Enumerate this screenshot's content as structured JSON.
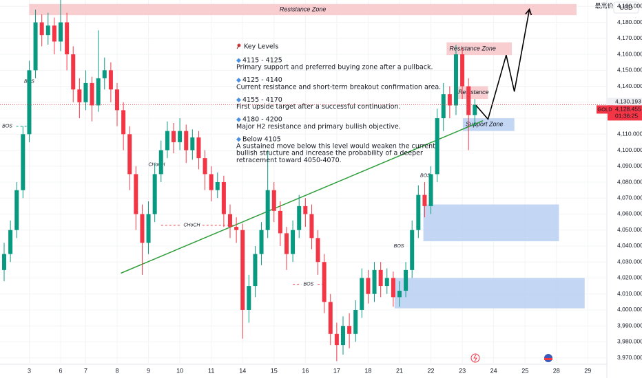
{
  "chart_data": {
    "type": "candlestick",
    "currency": "USD",
    "high_label": "最高价",
    "symbol": "GOLD",
    "countdown": "01:36:25",
    "up_color": "#089981",
    "down_color": "#f23645",
    "open": [
      4025,
      4035,
      4050,
      4075,
      4110,
      4150,
      4180,
      4172,
      4178,
      4168,
      4180,
      4160,
      4138,
      4130,
      4142,
      4128,
      4145,
      4150,
      4138,
      4125,
      4110,
      4085,
      4060,
      4042,
      4060,
      4085,
      4100,
      4112,
      4105,
      4112,
      4100,
      4108,
      4095,
      4085,
      4075,
      4080,
      4060,
      4052,
      4050,
      4000,
      4015,
      4035,
      4050,
      4075,
      4062,
      4048,
      4035,
      4050,
      4065,
      4060,
      4045,
      4030,
      4005,
      3985,
      3978,
      3990,
      3985,
      4000,
      4020,
      4010,
      4025,
      4015,
      4020,
      4008,
      4012,
      4025,
      4050,
      4072,
      4065,
      4085,
      4120,
      4135,
      4128,
      4160,
      4140,
      4122
    ],
    "high": [
      4042,
      4056,
      4080,
      4115,
      4156,
      4188,
      4185,
      4186,
      4183,
      4196,
      4186,
      4165,
      4145,
      4150,
      4146,
      4175,
      4158,
      4155,
      4142,
      4130,
      4115,
      4090,
      4066,
      4068,
      4092,
      4106,
      4118,
      4117,
      4120,
      4116,
      4113,
      4112,
      4100,
      4090,
      4086,
      4084,
      4066,
      4058,
      4054,
      4022,
      4040,
      4055,
      4100,
      4080,
      4068,
      4052,
      4056,
      4072,
      4070,
      4066,
      4050,
      4035,
      4010,
      3992,
      3996,
      3998,
      4006,
      4026,
      4025,
      4030,
      4030,
      4026,
      4024,
      4018,
      4030,
      4056,
      4078,
      4080,
      4090,
      4126,
      4142,
      4140,
      4166,
      4164,
      4145,
      4132
    ],
    "low": [
      4018,
      4030,
      4045,
      4070,
      4105,
      4145,
      4165,
      4166,
      4160,
      4162,
      4150,
      4130,
      4120,
      4125,
      4118,
      4124,
      4138,
      4130,
      4115,
      4100,
      4075,
      4050,
      4022,
      4035,
      4055,
      4080,
      4095,
      4098,
      4100,
      4092,
      4094,
      4088,
      4075,
      4068,
      4070,
      4052,
      4045,
      4042,
      3982,
      3992,
      4008,
      4028,
      4045,
      4055,
      4040,
      4025,
      4030,
      4045,
      4052,
      4038,
      4022,
      3998,
      3978,
      3968,
      3972,
      3976,
      3980,
      3995,
      4004,
      4005,
      4008,
      4010,
      4002,
      4002,
      4008,
      4020,
      4045,
      4058,
      4060,
      4080,
      4112,
      4120,
      4122,
      4132,
      4100,
      4115
    ],
    "close": [
      4035,
      4050,
      4075,
      4110,
      4150,
      4180,
      4172,
      4178,
      4168,
      4180,
      4160,
      4138,
      4130,
      4142,
      4128,
      4145,
      4150,
      4138,
      4125,
      4110,
      4085,
      4060,
      4042,
      4060,
      4085,
      4100,
      4112,
      4105,
      4112,
      4100,
      4108,
      4095,
      4085,
      4075,
      4080,
      4060,
      4052,
      4050,
      4000,
      4015,
      4035,
      4050,
      4075,
      4062,
      4048,
      4035,
      4050,
      4065,
      4060,
      4045,
      4030,
      4005,
      3985,
      3978,
      3990,
      3985,
      4000,
      4020,
      4010,
      4025,
      4015,
      4020,
      4008,
      4012,
      4025,
      4050,
      4072,
      4065,
      4085,
      4120,
      4135,
      4128,
      4160,
      4140,
      4122,
      4128.455
    ],
    "ylim": [
      3966,
      4194
    ],
    "yticks": [
      {
        "value": 3970,
        "label": "3,970.000"
      },
      {
        "value": 3980,
        "label": "3,980.000"
      },
      {
        "value": 3990,
        "label": "3,990.000"
      },
      {
        "value": 4000,
        "label": "4,000.000"
      },
      {
        "value": 4010,
        "label": "4,010.000"
      },
      {
        "value": 4020,
        "label": "4,020.000"
      },
      {
        "value": 4030,
        "label": "4,030.000"
      },
      {
        "value": 4040,
        "label": "4,040.000"
      },
      {
        "value": 4050,
        "label": "4,050.000"
      },
      {
        "value": 4060,
        "label": "4,060.000"
      },
      {
        "value": 4070,
        "label": "4,070.000"
      },
      {
        "value": 4080,
        "label": "4,080.000"
      },
      {
        "value": 4090,
        "label": "4,090.000"
      },
      {
        "value": 4100,
        "label": "4,100.000"
      },
      {
        "value": 4110,
        "label": "4,110.000"
      },
      {
        "value": 4120,
        "label": "4,120.000"
      },
      {
        "value": 4130,
        "label": "4,130.000"
      },
      {
        "value": 4140,
        "label": "4,140.000"
      },
      {
        "value": 4150,
        "label": "4,150.000"
      },
      {
        "value": 4160,
        "label": "4,160.000"
      },
      {
        "value": 4170,
        "label": "4,170.000"
      },
      {
        "value": 4180,
        "label": "4,180.000"
      },
      {
        "value": 4190,
        "label": "4,190.000"
      }
    ],
    "xlim": [
      -0.66,
      96.04
    ],
    "xticks": [
      {
        "value": 4,
        "label": "3"
      },
      {
        "value": 9,
        "label": "6"
      },
      {
        "value": 13,
        "label": "7"
      },
      {
        "value": 18,
        "label": "8"
      },
      {
        "value": 23,
        "label": "9"
      },
      {
        "value": 28,
        "label": "10"
      },
      {
        "value": 33,
        "label": "11"
      },
      {
        "value": 38,
        "label": "14"
      },
      {
        "value": 43,
        "label": "15"
      },
      {
        "value": 48,
        "label": "16"
      },
      {
        "value": 53,
        "label": "17"
      },
      {
        "value": 58,
        "label": "18"
      },
      {
        "value": 63,
        "label": "21"
      },
      {
        "value": 68,
        "label": "22"
      },
      {
        "value": 73,
        "label": "23"
      },
      {
        "value": 78,
        "label": "24"
      },
      {
        "value": 83,
        "label": "25"
      },
      {
        "value": 88,
        "label": "28"
      },
      {
        "value": 93,
        "label": "29"
      }
    ],
    "price_marks": [
      {
        "value": 4130.193,
        "label": "4,130.193"
      },
      {
        "value": 4128.455,
        "label": "4,128.455"
      }
    ],
    "zones": [
      {
        "label": "Resistance Zone",
        "from": 4,
        "to": 91.2,
        "low": 4184.5,
        "high": 4191.5,
        "color": "#f7c5c9"
      },
      {
        "label": "Resistance Zone",
        "from": 70.5,
        "to": 80.9,
        "low": 4159.5,
        "high": 4167.5,
        "color": "#f7c5c9"
      },
      {
        "label": "Resistance",
        "from": 71.9,
        "to": 77.1,
        "low": 4132,
        "high": 4140,
        "color": "#f7c5c9"
      },
      {
        "label": "Support Zone",
        "from": 73.1,
        "to": 81.3,
        "low": 4112,
        "high": 4120,
        "color": "#b9cff2"
      },
      {
        "from": 66.8,
        "to": 88.4,
        "low": 4043,
        "high": 4066,
        "color": "#b9cff2"
      },
      {
        "from": 62.2,
        "to": 92.5,
        "low": 4001,
        "high": 4020,
        "color": "#b9cff2"
      }
    ],
    "trendline": {
      "x": [
        18.6,
        76.3
      ],
      "y": [
        4023,
        4118.5
      ],
      "color": "#2e9e3a"
    },
    "projection": {
      "x": [
        75.2,
        77.1,
        80,
        81.3,
        83.7
      ],
      "y": [
        4128,
        4119.4,
        4159.5,
        4136.7,
        4188.2
      ],
      "color": "#000000"
    },
    "markers": [
      {
        "text": "BOS",
        "x": 4,
        "price": 4143,
        "color": "#089981"
      },
      {
        "text": "BOS",
        "x": 0.5,
        "price": 4115,
        "color": "#089981",
        "from": -0.7,
        "to": 4
      },
      {
        "text": "CHoCH",
        "x": 24.3,
        "price": 4091,
        "color": "#089981"
      },
      {
        "text": "CHoCH",
        "x": 29.9,
        "price": 4053,
        "color": "#f23645",
        "from": 25,
        "to": 36.7
      },
      {
        "text": "BOS",
        "x": 48.5,
        "price": 4016,
        "color": "#f23645",
        "from": 46,
        "to": 51
      },
      {
        "text": "BOS",
        "x": 67.1,
        "price": 4084,
        "color": "#089981"
      },
      {
        "text": "BOS",
        "x": 62.9,
        "price": 4040,
        "color": "#089981"
      }
    ]
  },
  "notes": {
    "title": "Key Levels",
    "items": [
      {
        "range": "4115 - 4125",
        "lines": [
          "Primary support and preferred buying zone after a pullback."
        ]
      },
      {
        "range": "4125 - 4140",
        "lines": [
          "Current resistance and short-term breakout confirmation area."
        ]
      },
      {
        "range": "4155 - 4170",
        "lines": [
          "First upside target after a successful continuation."
        ]
      },
      {
        "range": "4180 - 4200",
        "lines": [
          "Major H2 resistance and primary bullish objective."
        ]
      },
      {
        "range": "Below 4105",
        "lines": [
          "A sustained move below this level would weaken the current",
          "bullish structure and increase the probability of a deeper",
          "retracement toward 4050-4070."
        ]
      }
    ]
  }
}
